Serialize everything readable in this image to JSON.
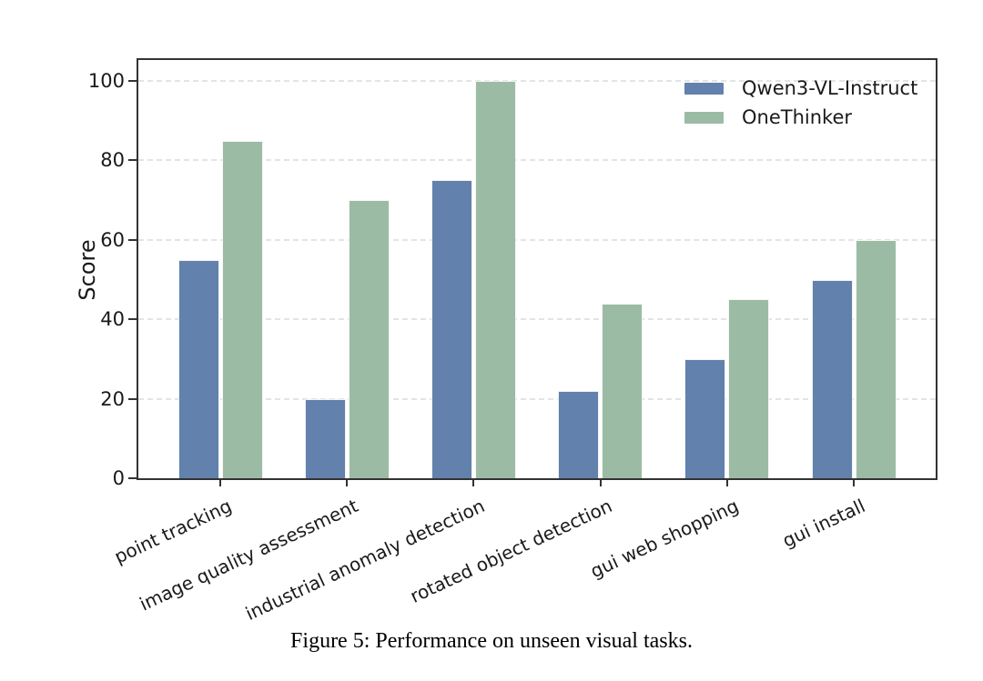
{
  "figure": {
    "caption": "Figure 5: Performance on unseen visual tasks."
  },
  "chart_data": {
    "type": "bar",
    "title": "",
    "xlabel": "",
    "ylabel": "Score",
    "ylim": [
      0,
      105
    ],
    "yticks": [
      0,
      20,
      40,
      60,
      80,
      100
    ],
    "grid": "horizontal-dashed",
    "legend_position": "upper-right-inside",
    "categories": [
      "point tracking",
      "image quality assessment",
      "industrial anomaly detection",
      "rotated object detection",
      "gui web shopping",
      "gui install"
    ],
    "series": [
      {
        "name": "Qwen3-VL-Instruct",
        "color": "#6281ac",
        "values": [
          55,
          20,
          75,
          22,
          30,
          50
        ]
      },
      {
        "name": "OneThinker",
        "color": "#9cbba4",
        "values": [
          85,
          70,
          100,
          44,
          45,
          60
        ]
      }
    ],
    "colors": {
      "axis": "#333333",
      "grid": "#e4e4e4",
      "text": "#1a1a1a"
    }
  }
}
